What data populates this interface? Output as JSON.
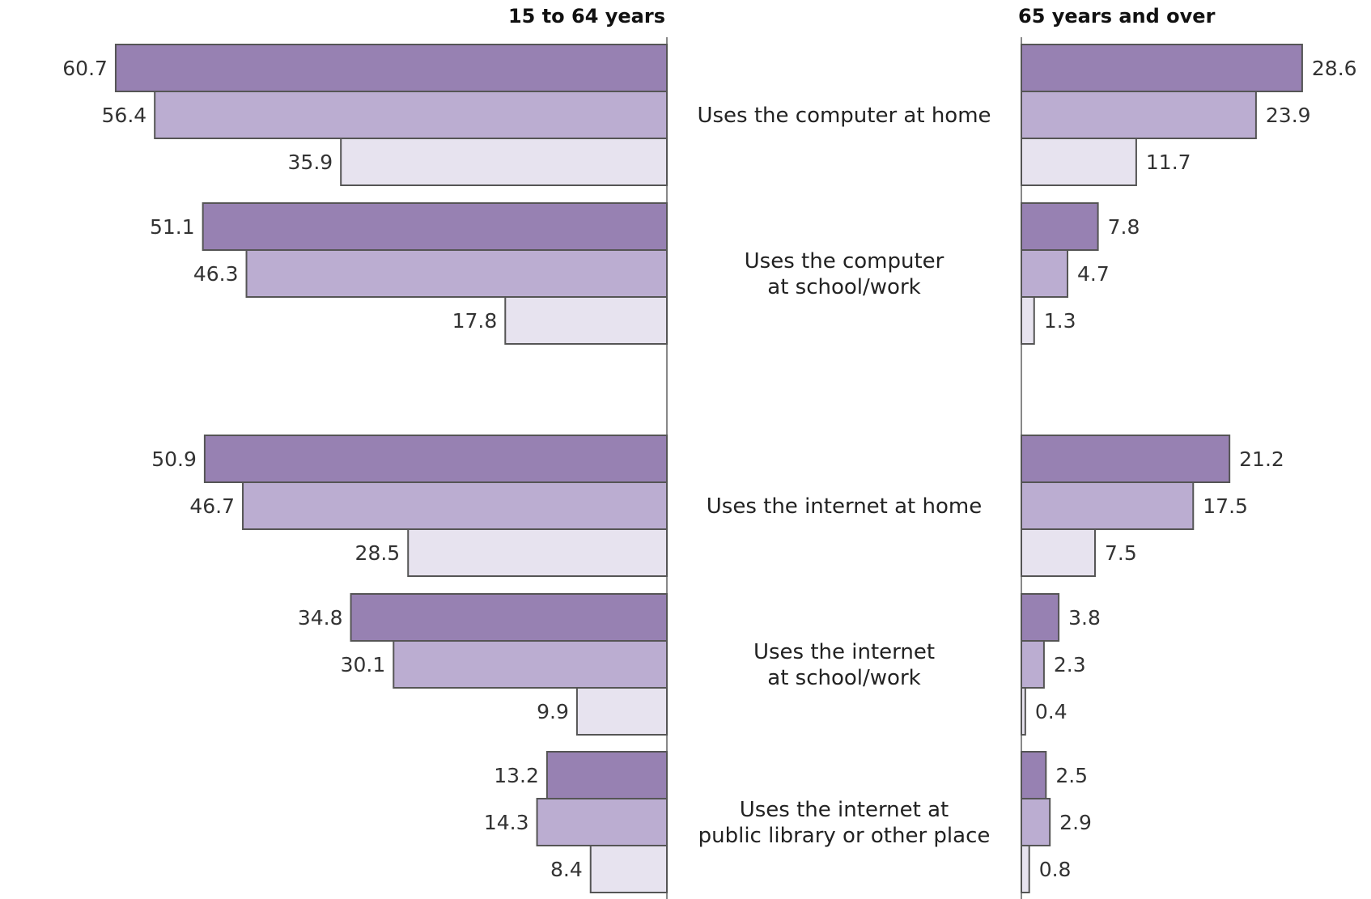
{
  "chart_data": {
    "type": "bar",
    "orientation": "horizontal",
    "panels": [
      {
        "title": "15 to 64 years"
      },
      {
        "title": "65 years and over"
      }
    ],
    "categories": [
      [
        "Uses the computer at home"
      ],
      [
        "Uses the computer",
        "at school/work"
      ],
      [
        "Uses the internet at home"
      ],
      [
        "Uses the internet",
        "at school/work"
      ],
      [
        "Uses the internet at",
        "public library or other place"
      ]
    ],
    "series": [
      {
        "color": "#9781b2",
        "left": [
          60.7,
          51.1,
          50.9,
          34.8,
          13.2
        ],
        "right": [
          28.6,
          7.8,
          21.2,
          3.8,
          2.5
        ]
      },
      {
        "color": "#bbadd1",
        "left": [
          56.4,
          46.3,
          46.7,
          30.1,
          14.3
        ],
        "right": [
          23.9,
          4.7,
          17.5,
          2.3,
          2.9
        ]
      },
      {
        "color": "#e7e3ef",
        "left": [
          35.9,
          17.8,
          28.5,
          9.9,
          8.4
        ],
        "right": [
          11.7,
          1.3,
          7.5,
          0.4,
          0.8
        ]
      }
    ],
    "legend": "none",
    "grid": false
  }
}
